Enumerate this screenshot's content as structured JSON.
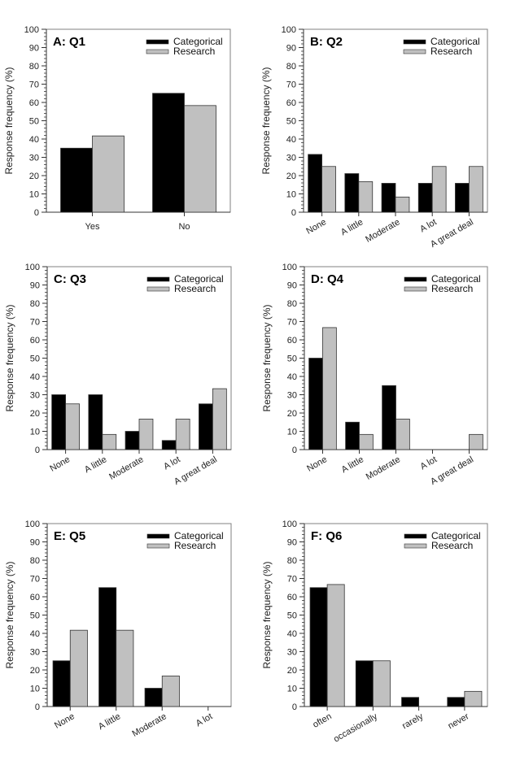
{
  "legend": {
    "categorical": "Categorical",
    "research": "Research"
  },
  "colors": {
    "categorical": "#000000",
    "research": "#c0c0c0",
    "frame": "#808080"
  },
  "chart_data": [
    {
      "type": "bar",
      "title": "A: Q1",
      "xlabel": "",
      "ylabel": "Response frequency (%)",
      "ylim": [
        0,
        100
      ],
      "yticks": [
        0,
        10,
        20,
        30,
        40,
        50,
        60,
        70,
        80,
        90,
        100
      ],
      "categories": [
        "Yes",
        "No"
      ],
      "rotate_labels": false,
      "legend_position": "top-right",
      "series": [
        {
          "name": "Categorical",
          "values": [
            35,
            65
          ]
        },
        {
          "name": "Research",
          "values": [
            41.7,
            58.3
          ]
        }
      ]
    },
    {
      "type": "bar",
      "title": "B: Q2",
      "xlabel": "",
      "ylabel": "Response frequency (%)",
      "ylim": [
        0,
        100
      ],
      "yticks": [
        0,
        10,
        20,
        30,
        40,
        50,
        60,
        70,
        80,
        90,
        100
      ],
      "categories": [
        "None",
        "A little",
        "Moderate",
        "A lot",
        "A great deal"
      ],
      "rotate_labels": true,
      "legend_position": "top-right",
      "series": [
        {
          "name": "Categorical",
          "values": [
            31.6,
            21.1,
            15.8,
            15.8,
            15.8
          ]
        },
        {
          "name": "Research",
          "values": [
            25,
            16.7,
            8.3,
            25,
            25
          ]
        }
      ]
    },
    {
      "type": "bar",
      "title": "C: Q3",
      "xlabel": "",
      "ylabel": "Response frequency (%)",
      "ylim": [
        0,
        100
      ],
      "yticks": [
        0,
        10,
        20,
        30,
        40,
        50,
        60,
        70,
        80,
        90,
        100
      ],
      "categories": [
        "None",
        "A little",
        "Moderate",
        "A lot",
        "A great deal"
      ],
      "rotate_labels": true,
      "legend_position": "top-right",
      "series": [
        {
          "name": "Categorical",
          "values": [
            30,
            30,
            10,
            5,
            25
          ]
        },
        {
          "name": "Research",
          "values": [
            25,
            8.3,
            16.7,
            16.7,
            33.3
          ]
        }
      ]
    },
    {
      "type": "bar",
      "title": "D: Q4",
      "xlabel": "",
      "ylabel": "Response frequency (%)",
      "ylim": [
        0,
        100
      ],
      "yticks": [
        0,
        10,
        20,
        30,
        40,
        50,
        60,
        70,
        80,
        90,
        100
      ],
      "categories": [
        "None",
        "A little",
        "Moderate",
        "A lot",
        "A great deal"
      ],
      "rotate_labels": true,
      "legend_position": "top-right",
      "series": [
        {
          "name": "Categorical",
          "values": [
            50,
            15,
            35,
            0,
            0
          ]
        },
        {
          "name": "Research",
          "values": [
            66.7,
            8.3,
            16.7,
            0,
            8.3
          ]
        }
      ]
    },
    {
      "type": "bar",
      "title": "E: Q5",
      "xlabel": "",
      "ylabel": "Response frequency (%)",
      "ylim": [
        0,
        100
      ],
      "yticks": [
        0,
        10,
        20,
        30,
        40,
        50,
        60,
        70,
        80,
        90,
        100
      ],
      "categories": [
        "None",
        "A little",
        "Moderate",
        "A lot"
      ],
      "rotate_labels": true,
      "legend_position": "top-right",
      "series": [
        {
          "name": "Categorical",
          "values": [
            25,
            65,
            10,
            0
          ]
        },
        {
          "name": "Research",
          "values": [
            41.7,
            41.7,
            16.7,
            0
          ]
        }
      ]
    },
    {
      "type": "bar",
      "title": "F: Q6",
      "xlabel": "",
      "ylabel": "Response frequency (%)",
      "ylim": [
        0,
        100
      ],
      "yticks": [
        0,
        10,
        20,
        30,
        40,
        50,
        60,
        70,
        80,
        90,
        100
      ],
      "categories": [
        "often",
        "occasionally",
        "rarely",
        "never"
      ],
      "rotate_labels": true,
      "legend_position": "top-right",
      "series": [
        {
          "name": "Categorical",
          "values": [
            65,
            25,
            5,
            5
          ]
        },
        {
          "name": "Research",
          "values": [
            66.7,
            25,
            0,
            8.3
          ]
        }
      ]
    }
  ]
}
